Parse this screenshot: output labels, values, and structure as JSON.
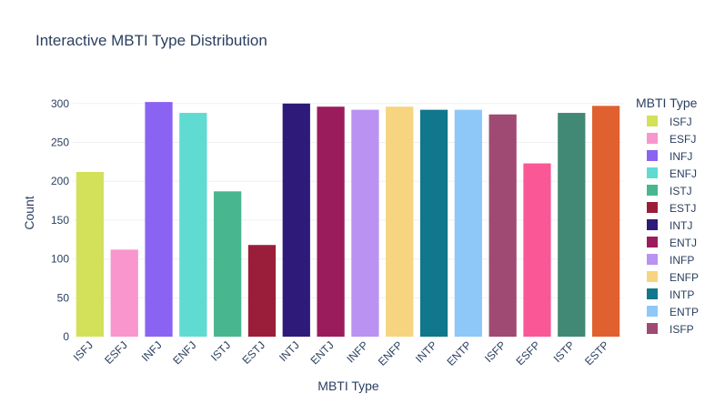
{
  "chart_data": {
    "type": "bar",
    "title": "Interactive MBTI Type Distribution",
    "xlabel": "MBTI Type",
    "ylabel": "Count",
    "ylim": [
      0,
      315
    ],
    "yticks": [
      0,
      50,
      100,
      150,
      200,
      250,
      300
    ],
    "grid": true,
    "legend_title": "MBTI Type",
    "legend_position": "right",
    "categories": [
      "ISFJ",
      "ESFJ",
      "INFJ",
      "ENFJ",
      "ISTJ",
      "ESTJ",
      "INTJ",
      "ENTJ",
      "INFP",
      "ENFP",
      "INTP",
      "ENTP",
      "ISFP",
      "ESFP",
      "ISTP",
      "ESTP"
    ],
    "values": [
      212,
      112,
      302,
      288,
      187,
      118,
      300,
      296,
      292,
      296,
      292,
      292,
      286,
      223,
      288,
      297
    ],
    "colors": [
      "#d2e05a",
      "#f896cd",
      "#8a63f2",
      "#5fdbd2",
      "#48b68f",
      "#9a1e3a",
      "#2e1a78",
      "#9b1c5c",
      "#b992f2",
      "#f7d47f",
      "#10778c",
      "#8ec8f8",
      "#9e4a73",
      "#fa5796",
      "#428975",
      "#e06030"
    ],
    "legend_entries": [
      "ISFJ",
      "ESFJ",
      "INFJ",
      "ENFJ",
      "ISTJ",
      "ESTJ",
      "INTJ",
      "ENTJ",
      "INFP",
      "ENFP",
      "INTP",
      "ENTP",
      "ISFP"
    ]
  }
}
